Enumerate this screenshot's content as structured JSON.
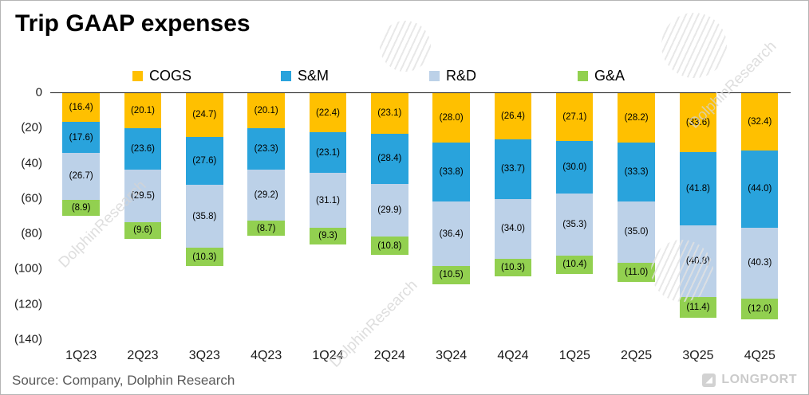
{
  "title": "Trip GAAP expenses",
  "source": "Source: Company, Dolphin Research",
  "watermark_text": "DolphinResearch",
  "brand": "LONGPORT",
  "colors": {
    "cogs": "#FFC000",
    "sm": "#29A3DC",
    "rd": "#BCD1E8",
    "ga": "#92D050"
  },
  "chart_data": {
    "type": "bar",
    "stacked": true,
    "direction": "negative-down",
    "title": "Trip GAAP expenses",
    "categories": [
      "1Q23",
      "2Q23",
      "3Q23",
      "4Q23",
      "1Q24",
      "2Q24",
      "3Q24",
      "4Q24",
      "1Q25",
      "2Q25",
      "3Q25",
      "4Q25"
    ],
    "series": [
      {
        "name": "COGS",
        "color_key": "cogs",
        "values": [
          16.4,
          20.1,
          24.7,
          20.1,
          22.4,
          23.1,
          28.0,
          26.4,
          27.1,
          28.2,
          33.6,
          32.4
        ]
      },
      {
        "name": "S&M",
        "color_key": "sm",
        "values": [
          17.6,
          23.6,
          27.6,
          23.3,
          23.1,
          28.4,
          33.8,
          33.7,
          30.0,
          33.3,
          41.8,
          44.0
        ]
      },
      {
        "name": "R&D",
        "color_key": "rd",
        "values": [
          26.7,
          29.5,
          35.8,
          29.2,
          31.1,
          29.9,
          36.4,
          34.0,
          35.3,
          35.0,
          40.8,
          40.3
        ]
      },
      {
        "name": "G&A",
        "color_key": "ga",
        "values": [
          8.9,
          9.6,
          10.3,
          8.7,
          9.3,
          10.8,
          10.5,
          10.3,
          10.4,
          11.0,
          11.4,
          12.0
        ]
      }
    ],
    "y_ticks": [
      "0",
      "(20)",
      "(40)",
      "(60)",
      "(80)",
      "(100)",
      "(120)",
      "(140)"
    ],
    "ylim": [
      0,
      -140
    ],
    "value_format": "parentheses-1-decimal",
    "legend_position": "top",
    "grid": false
  }
}
